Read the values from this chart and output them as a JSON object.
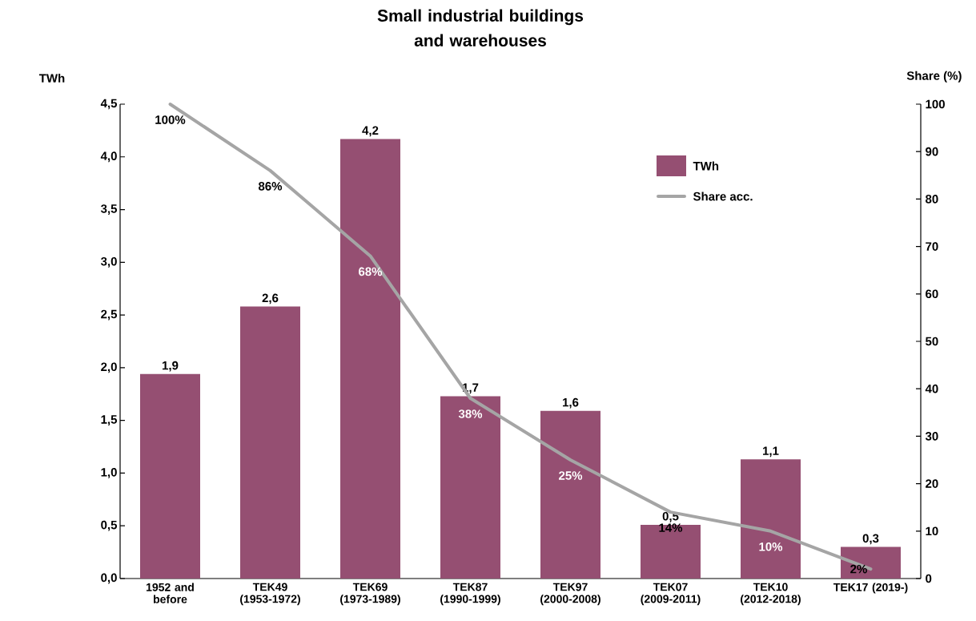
{
  "chart_data": {
    "type": "bar",
    "title": "Small industrial buildings and warehouses",
    "ylabel": "TWh",
    "y2label": "Share (%)",
    "categories": [
      "1952 and before",
      "TEK49 (1953-1972)",
      "TEK69 (1973-1989)",
      "TEK87 (1990-1999)",
      "TEK97 (2000-2008)",
      "TEK07 (2009-2011)",
      "TEK10 (2012-2018)",
      "TEK17 (2019-)"
    ],
    "series": [
      {
        "name": "TWh",
        "color": "#954f72",
        "values": [
          1.94,
          2.58,
          4.17,
          1.73,
          1.59,
          0.51,
          1.13,
          0.3
        ],
        "value_labels": [
          "1,9",
          "2,6",
          "4,2",
          "1,7",
          "1,6",
          "0,5",
          "1,1",
          "0,3"
        ]
      },
      {
        "name": "Share acc.",
        "type": "line",
        "axis": "y2",
        "color": "#a5a5a5",
        "values": [
          100,
          86,
          68,
          38,
          25,
          14,
          10,
          2
        ],
        "value_labels": [
          "100%",
          "86%",
          "68%",
          "38%",
          "25%",
          "14%",
          "10%",
          "2%"
        ]
      }
    ],
    "ylim": [
      0,
      4.5
    ],
    "yticks": [
      {
        "value": 0,
        "label": "0,0"
      },
      {
        "value": 0.5,
        "label": "0,5"
      },
      {
        "value": 1,
        "label": "1,0"
      },
      {
        "value": 1.5,
        "label": "1,5"
      },
      {
        "value": 2,
        "label": "2,0"
      },
      {
        "value": 2.5,
        "label": "2,5"
      },
      {
        "value": 3,
        "label": "3,0"
      },
      {
        "value": 3.5,
        "label": "3,5"
      },
      {
        "value": 4,
        "label": "4,0"
      },
      {
        "value": 4.5,
        "label": "4,5"
      }
    ],
    "y2lim": [
      0,
      100
    ],
    "y2ticks": [
      0,
      10,
      20,
      30,
      40,
      50,
      60,
      70,
      80,
      90,
      100
    ],
    "legend": "top right",
    "grid": false
  }
}
